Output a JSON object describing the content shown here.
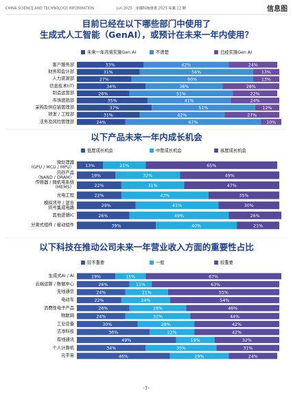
{
  "header": {
    "publication": "CHINA SCIENCE AND TECHNOLOGY INFORMATION",
    "issue": "Jun.2025 · 中国科技信息 2025 年第 12 期",
    "section": "信息图"
  },
  "footer": "-7-",
  "chart_data": [
    {
      "type": "bar",
      "orientation": "horizontal",
      "stacked": true,
      "title": "目前已经在以下哪些部门中使用了\n生成式人工智能（GenAI），或预计在未来一年内使用？",
      "categories": [
        "客户服务部",
        "财务和会计部",
        "人力资源部",
        "信息技术(IT)",
        "制造运营部",
        "市场营销部",
        "采购及供应链管理部",
        "研发 / 工程部",
        "法务及风险管理部"
      ],
      "series": [
        {
          "name": "未来一年内将实施Gen AI",
          "color": "#2f4f9e",
          "values": [
            33,
            31,
            27,
            34,
            26,
            35,
            37,
            31,
            24
          ],
          "value_labels": [
            "33%",
            "31%",
            "27%",
            "34%",
            "26%",
            "35%",
            "37%",
            "31%",
            "24%"
          ]
        },
        {
          "name": "不清楚",
          "color": "#3f8fd8",
          "values": [
            42,
            56,
            60,
            38,
            51,
            41,
            51,
            42,
            67
          ],
          "value_labels": [
            "42%",
            "56%",
            "60%",
            "38%",
            "51%",
            "41%",
            "51%",
            "42%",
            "67%"
          ]
        },
        {
          "name": "已经实施Gen AI",
          "color": "#6a4ea0",
          "values": [
            24,
            13,
            13,
            28,
            22,
            24,
            12,
            27,
            10
          ],
          "value_labels": [
            "24%",
            "13%",
            "13%",
            "28%",
            "22%",
            "24%",
            "12%",
            "27%",
            "10%"
          ]
        }
      ]
    },
    {
      "type": "bar",
      "orientation": "horizontal",
      "stacked": true,
      "title": "以下产品未来一年内成长机会",
      "categories": [
        "微处理器\n（GPU / MCU / MPU）",
        "内存产品\n（NAND / DRAM）",
        "传感器 / 微机电系统\n（MEMS）",
        "光电工程",
        "模拟讯号 / 混合\n讯号集成电路",
        "其他逻辑IC",
        "分离式组件 / 被动组件"
      ],
      "series": [
        {
          "name": "低度成长机会",
          "color": "#34539f",
          "values": [
            13,
            19,
            22,
            22,
            29,
            26,
            39
          ],
          "value_labels": [
            "13%",
            "19%",
            "22%",
            "22%",
            "29%",
            "26%",
            "39%"
          ]
        },
        {
          "name": "中度成长机会",
          "color": "#22aee0",
          "values": [
            21,
            32,
            31,
            43,
            41,
            49,
            40
          ],
          "value_labels": [
            "21%",
            "32%",
            "31%",
            "43%",
            "41%",
            "49%",
            "40%"
          ]
        },
        {
          "name": "高度成长机会",
          "color": "#58489a",
          "values": [
            65,
            49,
            47,
            35,
            30,
            26,
            21
          ],
          "value_labels": [
            "65%",
            "49%",
            "47%",
            "35%",
            "30%",
            "26%",
            "21%"
          ]
        }
      ]
    },
    {
      "type": "bar",
      "orientation": "horizontal",
      "stacked": true,
      "title": "以下科技在推动公司未来一年营业收入方面的重要性占比",
      "categories": [
        "生成式AI / AI",
        "云端运算 / 数据中心",
        "无线通信",
        "电动车",
        "消费性电子产品",
        "物联网",
        "工业设备",
        "洁净科技",
        "有线通讯",
        "个人计算机",
        "元宇宙"
      ],
      "series": [
        {
          "name": "较不重要",
          "color": "#3a5aa8",
          "values": [
            19,
            26,
            24,
            22,
            26,
            24,
            30,
            36,
            49,
            34,
            46
          ],
          "value_labels": [
            "19%",
            "26%",
            "24%",
            "22%",
            "26%",
            "24%",
            "30%",
            "36%",
            "49%",
            "34%",
            "46%"
          ]
        },
        {
          "name": "一般",
          "color": "#27aee3",
          "values": [
            15,
            11,
            21,
            24,
            28,
            32,
            28,
            22,
            19,
            35,
            29
          ],
          "value_labels": [
            "15%",
            "11%",
            "21%",
            "24%",
            "28%",
            "32%",
            "28%",
            "22%",
            "19%",
            "35%",
            "29%"
          ]
        },
        {
          "name": "较重要",
          "color": "#5b4d9e",
          "values": [
            67,
            63,
            55,
            54,
            46,
            44,
            42,
            42,
            32,
            31,
            24
          ],
          "value_labels": [
            "67%",
            "63%",
            "55%",
            "54%",
            "46%",
            "44%",
            "42%",
            "42%",
            "32%",
            "31%",
            "24%"
          ]
        }
      ]
    }
  ]
}
